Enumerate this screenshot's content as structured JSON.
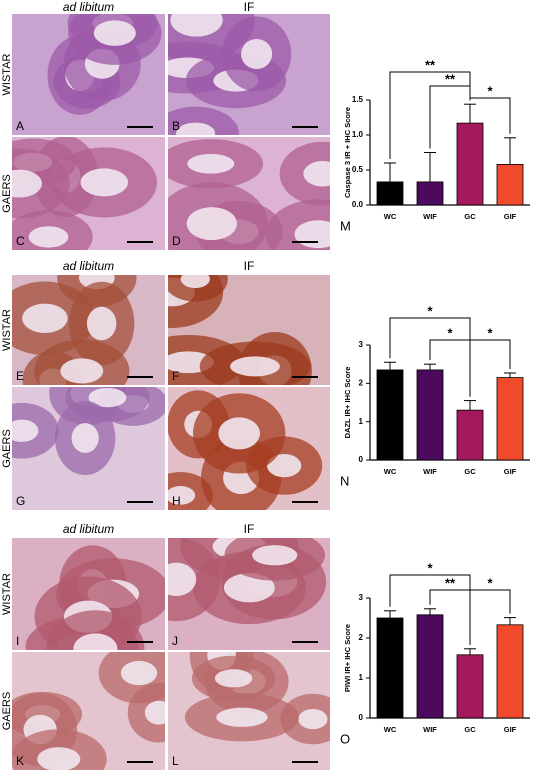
{
  "figure": {
    "sections": [
      {
        "columns": [
          "ad libitum",
          "IF"
        ],
        "rows": [
          "WISTAR",
          "GAERS"
        ],
        "panels": [
          "A",
          "B",
          "C",
          "D"
        ]
      },
      {
        "columns": [
          "ad libitum",
          "IF"
        ],
        "rows": [
          "WISTAR",
          "GAERS"
        ],
        "panels": [
          "E",
          "F",
          "G",
          "H"
        ]
      },
      {
        "columns": [
          "ad libitum",
          "IF"
        ],
        "rows": [
          "WISTAR",
          "GAERS"
        ],
        "panels": [
          "I",
          "J",
          "K",
          "L"
        ]
      }
    ]
  },
  "chart_data": [
    {
      "type": "bar",
      "panel_label": "M",
      "y_label": "Caspase 3 IR + IHC Score",
      "categories": [
        "WC",
        "WIF",
        "GC",
        "GIF"
      ],
      "values": [
        0.33,
        0.33,
        1.17,
        0.58
      ],
      "errors": [
        0.27,
        0.42,
        0.27,
        0.38
      ],
      "colors": [
        "#000000",
        "#4b0a5e",
        "#a3195b",
        "#f24a2c"
      ],
      "ylim": [
        0,
        1.5
      ],
      "yticks": [
        {
          "value": 0,
          "label": "0.0"
        },
        {
          "value": 0.5,
          "label": "0.5"
        },
        {
          "value": 1,
          "label": "1.0"
        },
        {
          "value": 1.5,
          "label": "1.5"
        }
      ],
      "annotations": [
        {
          "text": "**",
          "between": [
            "WC",
            "GC"
          ]
        },
        {
          "text": "**",
          "between": [
            "WIF",
            "GC"
          ]
        },
        {
          "text": "*",
          "between": [
            "GC",
            "GIF"
          ]
        }
      ]
    },
    {
      "type": "bar",
      "panel_label": "N",
      "y_label": "DAZL IR+ IHC Score",
      "categories": [
        "WC",
        "WIF",
        "GC",
        "GIF"
      ],
      "values": [
        2.35,
        2.35,
        1.3,
        2.15
      ],
      "errors": [
        0.2,
        0.15,
        0.25,
        0.12
      ],
      "colors": [
        "#000000",
        "#4b0a5e",
        "#a3195b",
        "#f24a2c"
      ],
      "ylim": [
        0,
        3
      ],
      "yticks": [
        0,
        1,
        2,
        3
      ],
      "annotations": [
        {
          "text": "*",
          "between": [
            "WC",
            "GC"
          ]
        },
        {
          "text": "*",
          "between": [
            "WIF",
            "GC"
          ]
        },
        {
          "text": "*",
          "between": [
            "GC",
            "GIF"
          ]
        }
      ]
    },
    {
      "type": "bar",
      "panel_label": "O",
      "y_label": "PIWI IR+ IHC Score",
      "categories": [
        "WC",
        "WIF",
        "GC",
        "GIF"
      ],
      "values": [
        2.5,
        2.58,
        1.58,
        2.33
      ],
      "errors": [
        0.18,
        0.15,
        0.15,
        0.18
      ],
      "colors": [
        "#000000",
        "#4b0a5e",
        "#a3195b",
        "#f24a2c"
      ],
      "ylim": [
        0,
        3
      ],
      "yticks": [
        0,
        1,
        2,
        3
      ],
      "annotations": [
        {
          "text": "*",
          "between": [
            "WC",
            "GC"
          ]
        },
        {
          "text": "**",
          "between": [
            "WIF",
            "GC"
          ]
        },
        {
          "text": "*",
          "between": [
            "GC",
            "GIF"
          ]
        }
      ]
    }
  ]
}
